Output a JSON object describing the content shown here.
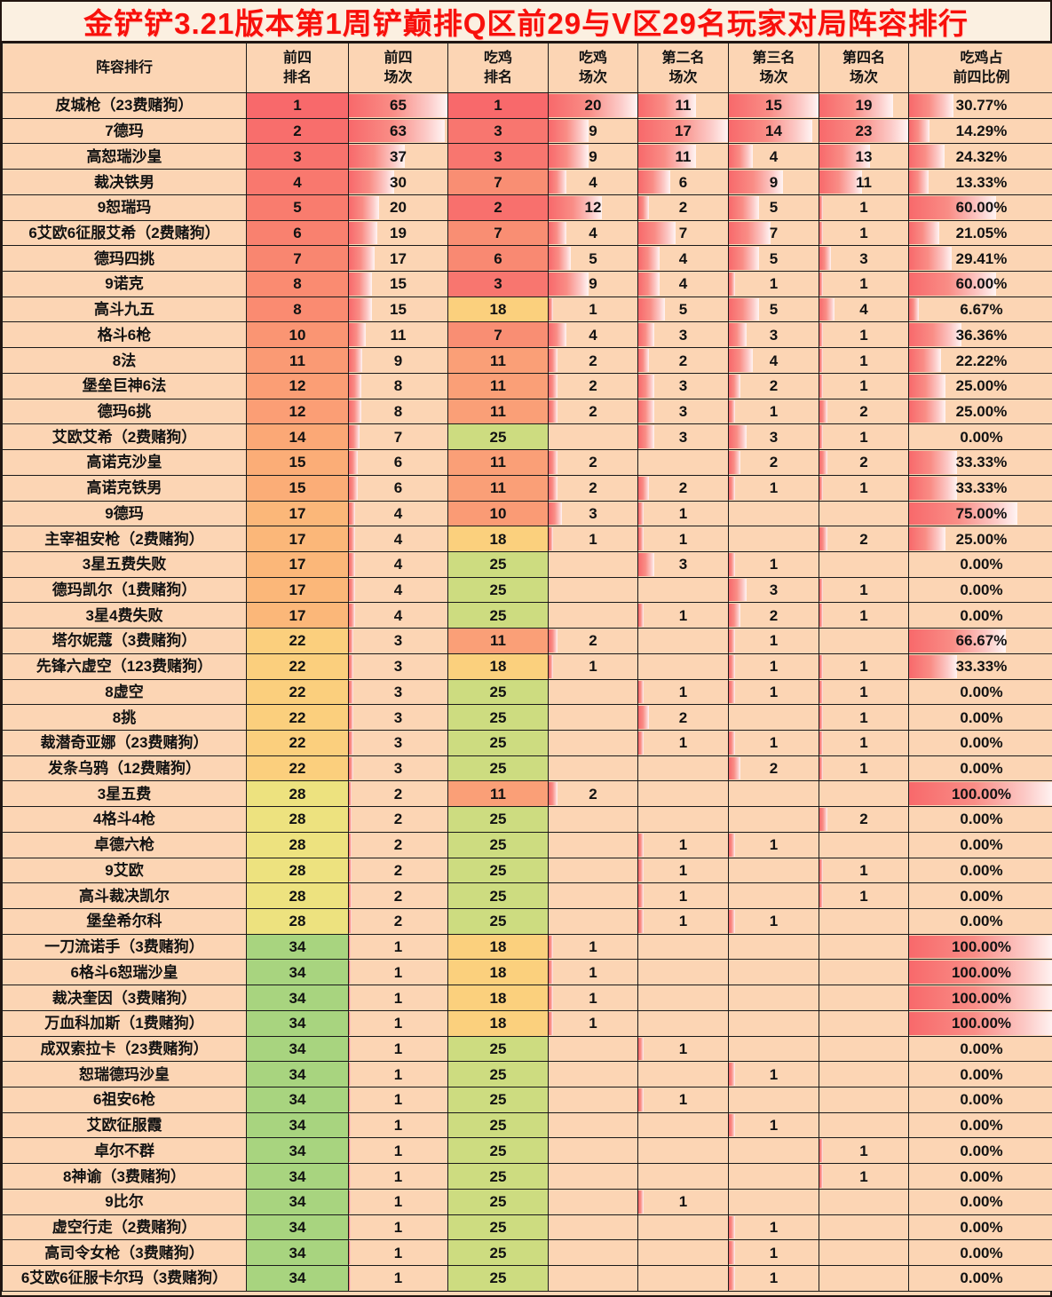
{
  "title": "金铲铲3.21版本第1周铲巅排Q区前29与V区29名玩家对局阵容排行",
  "format": {
    "title_color": "#F8100B",
    "title_background": "#FBF0E1",
    "cell_background": "#FCD5B4",
    "grid_border_color": "#1a1a1a",
    "bar_color_start": "#F8696B",
    "bar_color_end": "#FFF4F3",
    "bar_maxes": {
      "top4_games": 65,
      "chicken_games": 20,
      "second": 17,
      "third": 15,
      "fourth": 23,
      "ratio": 100
    },
    "front4_rank_colors": {
      "1": "#F8696B",
      "2": "#F86E6C",
      "3": "#F8736D",
      "4": "#F9786E",
      "5": "#F97C6E",
      "6": "#F9816F",
      "7": "#F98670",
      "8": "#FA8B71",
      "10": "#FA9573",
      "11": "#FA9A74",
      "12": "#FB9E75",
      "14": "#FBA876",
      "15": "#FBAD77",
      "17": "#FBB779",
      "22": "#FBCF7D",
      "28": "#EDE27F",
      "34": "#A8D47F"
    },
    "chicken_rank_colors": {
      "1": "#F8696B",
      "2": "#F8706D",
      "3": "#F8766F",
      "6": "#F98972",
      "7": "#F98E73",
      "10": "#FA9B75",
      "11": "#FA9F77",
      "18": "#FBD07D",
      "25": "#CDDC80"
    }
  },
  "chart_data": {
    "type": "table",
    "title": "金铲铲3.21版本第1周铲巅排Q区前29与V区29名玩家对局阵容排行",
    "columns": [
      "阵容排行",
      "前四\n排名",
      "前四\n场次",
      "吃鸡\n排名",
      "吃鸡\n场次",
      "第二名\n场次",
      "第三名\n场次",
      "第四名\n场次",
      "吃鸡占\n前四比例"
    ],
    "rows": [
      [
        "皮城枪（23费赌狗）",
        1,
        65,
        1,
        20,
        11,
        15,
        19,
        "30.77%"
      ],
      [
        "7德玛",
        2,
        63,
        3,
        9,
        17,
        14,
        23,
        "14.29%"
      ],
      [
        "高恕瑞沙皇",
        3,
        37,
        3,
        9,
        11,
        4,
        13,
        "24.32%"
      ],
      [
        "裁决铁男",
        4,
        30,
        7,
        4,
        6,
        9,
        11,
        "13.33%"
      ],
      [
        "9恕瑞玛",
        5,
        20,
        2,
        12,
        2,
        5,
        1,
        "60.00%"
      ],
      [
        "6艾欧6征服艾希（2费赌狗）",
        6,
        19,
        7,
        4,
        7,
        7,
        1,
        "21.05%"
      ],
      [
        "德玛四挑",
        7,
        17,
        6,
        5,
        4,
        5,
        3,
        "29.41%"
      ],
      [
        "9诺克",
        8,
        15,
        3,
        9,
        4,
        1,
        1,
        "60.00%"
      ],
      [
        "高斗九五",
        8,
        15,
        18,
        1,
        5,
        5,
        4,
        "6.67%"
      ],
      [
        "格斗6枪",
        10,
        11,
        7,
        4,
        3,
        3,
        1,
        "36.36%"
      ],
      [
        "8法",
        11,
        9,
        11,
        2,
        2,
        4,
        1,
        "22.22%"
      ],
      [
        "堡垒巨神6法",
        12,
        8,
        11,
        2,
        3,
        2,
        1,
        "25.00%"
      ],
      [
        "德玛6挑",
        12,
        8,
        11,
        2,
        3,
        1,
        2,
        "25.00%"
      ],
      [
        "艾欧艾希（2费赌狗）",
        14,
        7,
        25,
        null,
        3,
        3,
        1,
        "0.00%"
      ],
      [
        "高诺克沙皇",
        15,
        6,
        11,
        2,
        null,
        2,
        2,
        "33.33%"
      ],
      [
        "高诺克铁男",
        15,
        6,
        11,
        2,
        2,
        1,
        1,
        "33.33%"
      ],
      [
        "9德玛",
        17,
        4,
        10,
        3,
        1,
        null,
        null,
        "75.00%"
      ],
      [
        "主宰祖安枪（2费赌狗）",
        17,
        4,
        18,
        1,
        1,
        null,
        2,
        "25.00%"
      ],
      [
        "3星五费失败",
        17,
        4,
        25,
        null,
        3,
        1,
        null,
        "0.00%"
      ],
      [
        "德玛凯尔（1费赌狗）",
        17,
        4,
        25,
        null,
        null,
        3,
        1,
        "0.00%"
      ],
      [
        "3星4费失败",
        17,
        4,
        25,
        null,
        1,
        2,
        1,
        "0.00%"
      ],
      [
        "塔尔妮蔻（3费赌狗）",
        22,
        3,
        11,
        2,
        null,
        1,
        null,
        "66.67%"
      ],
      [
        "先锋六虚空（123费赌狗）",
        22,
        3,
        18,
        1,
        null,
        1,
        1,
        "33.33%"
      ],
      [
        "8虚空",
        22,
        3,
        25,
        null,
        1,
        1,
        1,
        "0.00%"
      ],
      [
        "8挑",
        22,
        3,
        25,
        null,
        2,
        null,
        1,
        "0.00%"
      ],
      [
        "裁潜奇亚娜（23费赌狗）",
        22,
        3,
        25,
        null,
        1,
        1,
        1,
        "0.00%"
      ],
      [
        "发条乌鸦（12费赌狗）",
        22,
        3,
        25,
        null,
        null,
        2,
        1,
        "0.00%"
      ],
      [
        "3星五费",
        28,
        2,
        11,
        2,
        null,
        null,
        null,
        "100.00%"
      ],
      [
        "4格斗4枪",
        28,
        2,
        25,
        null,
        null,
        null,
        2,
        "0.00%"
      ],
      [
        "卓德六枪",
        28,
        2,
        25,
        null,
        1,
        1,
        null,
        "0.00%"
      ],
      [
        "9艾欧",
        28,
        2,
        25,
        null,
        1,
        null,
        1,
        "0.00%"
      ],
      [
        "高斗裁决凯尔",
        28,
        2,
        25,
        null,
        1,
        null,
        1,
        "0.00%"
      ],
      [
        "堡垒希尔科",
        28,
        2,
        25,
        null,
        1,
        1,
        null,
        "0.00%"
      ],
      [
        "一刀流诺手（3费赌狗）",
        34,
        1,
        18,
        1,
        null,
        null,
        null,
        "100.00%"
      ],
      [
        "6格斗6恕瑞沙皇",
        34,
        1,
        18,
        1,
        null,
        null,
        null,
        "100.00%"
      ],
      [
        "裁决奎因（3费赌狗）",
        34,
        1,
        18,
        1,
        null,
        null,
        null,
        "100.00%"
      ],
      [
        "万血科加斯（1费赌狗）",
        34,
        1,
        18,
        1,
        null,
        null,
        null,
        "100.00%"
      ],
      [
        "成双索拉卡（23费赌狗）",
        34,
        1,
        25,
        null,
        1,
        null,
        null,
        "0.00%"
      ],
      [
        "恕瑞德玛沙皇",
        34,
        1,
        25,
        null,
        null,
        1,
        null,
        "0.00%"
      ],
      [
        "6祖安6枪",
        34,
        1,
        25,
        null,
        1,
        null,
        null,
        "0.00%"
      ],
      [
        "艾欧征服霞",
        34,
        1,
        25,
        null,
        null,
        1,
        null,
        "0.00%"
      ],
      [
        "卓尔不群",
        34,
        1,
        25,
        null,
        null,
        null,
        1,
        "0.00%"
      ],
      [
        "8神谕（3费赌狗）",
        34,
        1,
        25,
        null,
        null,
        null,
        1,
        "0.00%"
      ],
      [
        "9比尔",
        34,
        1,
        25,
        null,
        1,
        null,
        null,
        "0.00%"
      ],
      [
        "虚空行走（2费赌狗）",
        34,
        1,
        25,
        null,
        null,
        1,
        null,
        "0.00%"
      ],
      [
        "高司令女枪（3费赌狗）",
        34,
        1,
        25,
        null,
        null,
        1,
        null,
        "0.00%"
      ],
      [
        "6艾欧6征服卡尔玛（3费赌狗）",
        34,
        1,
        25,
        null,
        null,
        1,
        null,
        "0.00%"
      ]
    ]
  }
}
